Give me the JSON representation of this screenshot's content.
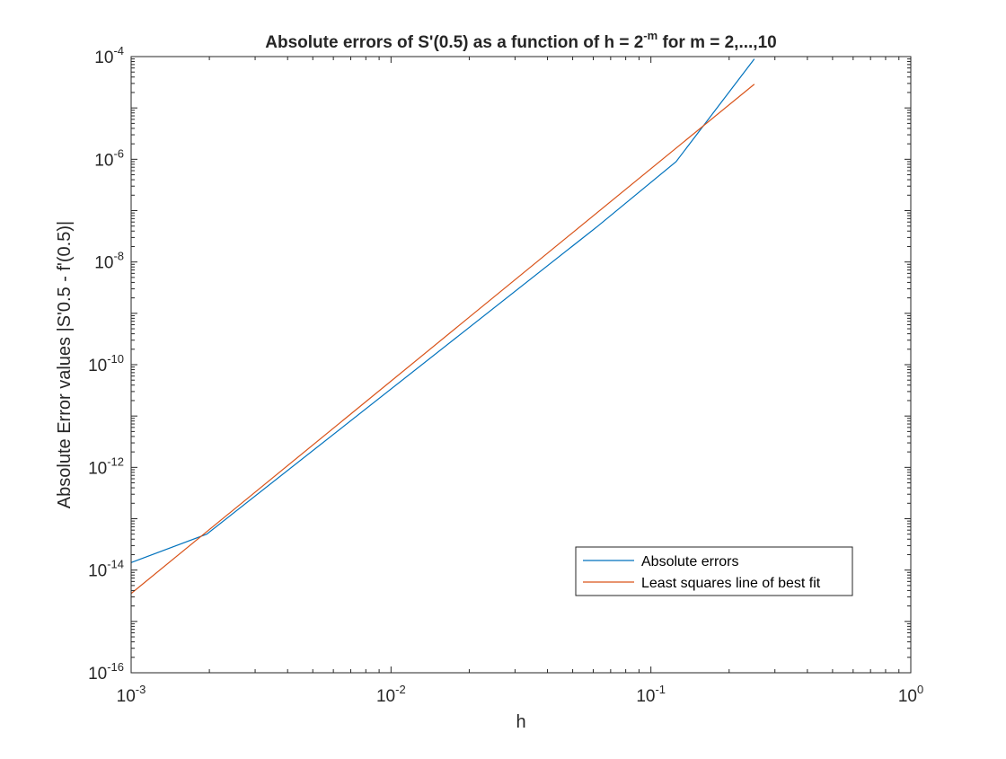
{
  "chart_data": {
    "type": "line",
    "title": {
      "prefix": "Absolute errors of S'(0.5) as a function of h = 2",
      "superscript": "-m",
      "suffix": " for m = 2,...,10"
    },
    "xlabel": "h",
    "ylabel": "Absolute Error values |S'0.5 - f'(0.5)|",
    "x_scale": "log",
    "y_scale": "log",
    "xlim": [
      0.001,
      1
    ],
    "ylim": [
      1e-16,
      0.0001
    ],
    "x_ticks": [
      {
        "value": 0.001,
        "base": "10",
        "exp": "-3"
      },
      {
        "value": 0.01,
        "base": "10",
        "exp": "-2"
      },
      {
        "value": 0.1,
        "base": "10",
        "exp": "-1"
      },
      {
        "value": 1,
        "base": "10",
        "exp": "0"
      }
    ],
    "y_ticks": [
      {
        "value": 1e-16,
        "base": "10",
        "exp": "-16"
      },
      {
        "value": 1e-14,
        "base": "10",
        "exp": "-14"
      },
      {
        "value": 1e-12,
        "base": "10",
        "exp": "-12"
      },
      {
        "value": 1e-10,
        "base": "10",
        "exp": "-10"
      },
      {
        "value": 1e-08,
        "base": "10",
        "exp": "-8"
      },
      {
        "value": 1e-06,
        "base": "10",
        "exp": "-6"
      },
      {
        "value": 0.0001,
        "base": "10",
        "exp": "-4"
      }
    ],
    "grid": false,
    "legend_position": "lower-right",
    "series": [
      {
        "name": "Absolute errors",
        "color": "#0072BD",
        "x": [
          0.0009765625,
          0.001953125,
          0.0625,
          0.125,
          0.25
        ],
        "y": [
          1.4e-14,
          5e-14,
          5e-08,
          9e-07,
          9e-05
        ]
      },
      {
        "name": "Least squares line of best fit",
        "color": "#D95319",
        "x": [
          0.0009765625,
          0.25
        ],
        "y": [
          3.5e-15,
          2.9e-05
        ]
      }
    ]
  }
}
